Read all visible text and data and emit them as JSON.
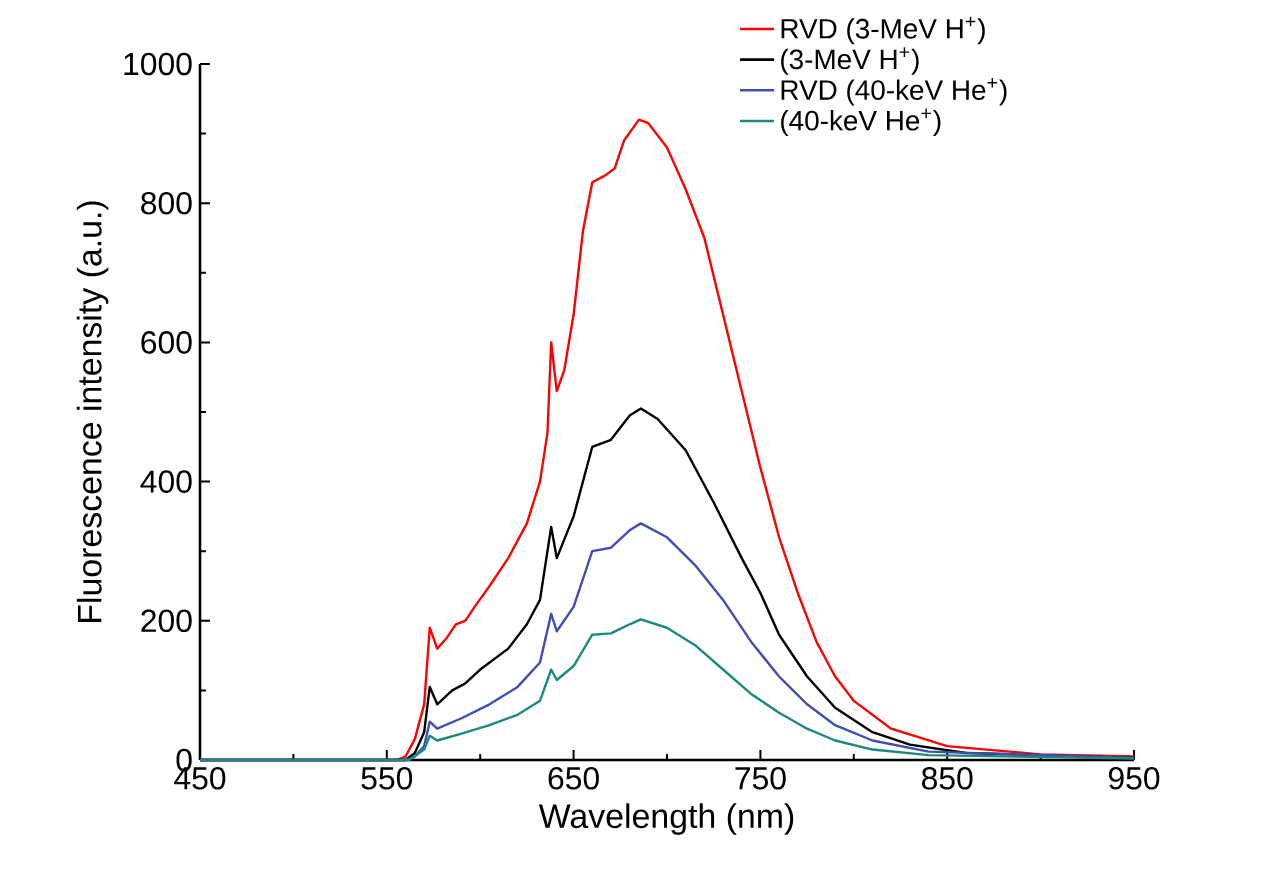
{
  "chart_data": {
    "type": "line",
    "xlabel": "Wavelength (nm)",
    "ylabel": "Fluorescence intensity (a.u.)",
    "xlim": [
      450,
      950
    ],
    "ylim": [
      0,
      1000
    ],
    "xticks": [
      450,
      550,
      650,
      750,
      850,
      950
    ],
    "yticks": [
      0,
      200,
      400,
      600,
      800,
      1000
    ],
    "legend": "top right",
    "series": [
      {
        "name": "RVD (3-MeV H$^{+}$)",
        "color": "#ff0000",
        "x": [
          450,
          500,
          555,
          560,
          565,
          570,
          573,
          577,
          582,
          587,
          592,
          597,
          605,
          615,
          625,
          632,
          636,
          638,
          641,
          645,
          650,
          655,
          660,
          667,
          672,
          677,
          685,
          690,
          700,
          710,
          720,
          730,
          740,
          750,
          760,
          770,
          780,
          790,
          800,
          820,
          850,
          900,
          950
        ],
        "values": [
          0,
          0,
          0,
          5,
          30,
          80,
          190,
          160,
          175,
          195,
          200,
          220,
          250,
          290,
          340,
          400,
          470,
          600,
          530,
          560,
          640,
          760,
          830,
          840,
          850,
          890,
          920,
          915,
          880,
          820,
          750,
          640,
          530,
          420,
          320,
          240,
          170,
          120,
          85,
          45,
          20,
          8,
          5
        ]
      },
      {
        "name": "(3-MeV H$^{+}$)",
        "color": "#000000",
        "x": [
          450,
          500,
          560,
          565,
          570,
          573,
          577,
          585,
          592,
          600,
          615,
          625,
          632,
          638,
          641,
          650,
          660,
          670,
          680,
          686,
          695,
          710,
          725,
          740,
          750,
          760,
          775,
          790,
          810,
          830,
          860,
          950
        ],
        "values": [
          0,
          0,
          0,
          10,
          40,
          105,
          80,
          100,
          110,
          130,
          160,
          195,
          230,
          335,
          290,
          350,
          450,
          460,
          495,
          505,
          490,
          445,
          370,
          290,
          240,
          180,
          120,
          75,
          40,
          22,
          10,
          3
        ]
      },
      {
        "name": "RVD (40-keV He$^{+}$)",
        "color": "#3f4fb0",
        "x": [
          450,
          500,
          560,
          565,
          570,
          573,
          577,
          590,
          605,
          620,
          632,
          638,
          641,
          650,
          660,
          670,
          680,
          686,
          700,
          715,
          730,
          745,
          760,
          775,
          790,
          810,
          840,
          950
        ],
        "values": [
          0,
          0,
          0,
          5,
          20,
          55,
          45,
          60,
          80,
          105,
          140,
          210,
          185,
          220,
          300,
          305,
          330,
          340,
          320,
          280,
          230,
          170,
          120,
          80,
          50,
          28,
          12,
          3
        ]
      },
      {
        "name": "(40-keV He$^{+}$)",
        "color": "#1a8a80",
        "x": [
          450,
          500,
          562,
          570,
          573,
          577,
          590,
          605,
          620,
          632,
          638,
          641,
          650,
          660,
          670,
          680,
          686,
          700,
          715,
          730,
          745,
          760,
          775,
          790,
          810,
          840,
          950
        ],
        "values": [
          0,
          0,
          0,
          15,
          35,
          28,
          38,
          50,
          65,
          85,
          130,
          115,
          135,
          180,
          182,
          195,
          202,
          190,
          165,
          130,
          95,
          68,
          45,
          28,
          15,
          7,
          2
        ]
      }
    ]
  }
}
